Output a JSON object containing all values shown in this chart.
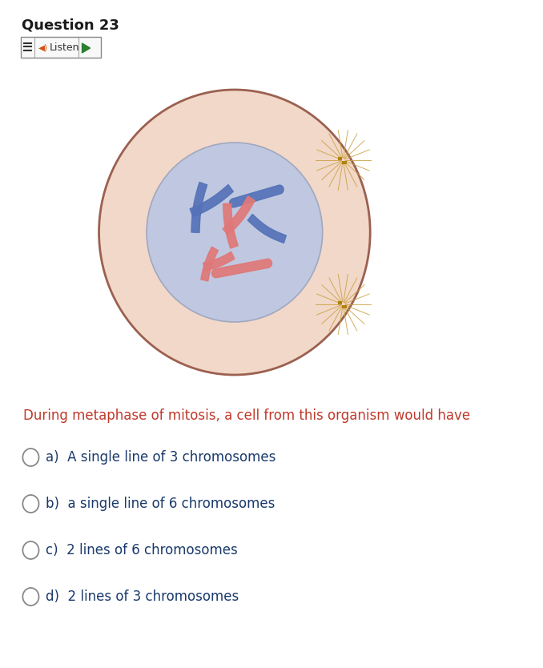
{
  "title": "Question 23",
  "question_text": "During metaphase of mitosis, a cell from this organism would have",
  "question_color": "#c0392b",
  "options": [
    "a)  A single line of 3 chromosomes",
    "b)  a single line of 6 chromosomes",
    "c)  2 lines of 6 chromosomes",
    "d)  2 lines of 3 chromosomes"
  ],
  "options_color": "#1a3a6b",
  "bg_color": "#ffffff",
  "cell_outer_bg": "#f2d8c8",
  "cell_outer_border": "#9b6050",
  "cell_inner_bg": "#bfc8e0",
  "cell_inner_border": "#a0a8c0",
  "chr_blue": "#5572b8",
  "chr_pink": "#e07878",
  "centriole_color": "#b89020",
  "aster_color": "#c8a840"
}
